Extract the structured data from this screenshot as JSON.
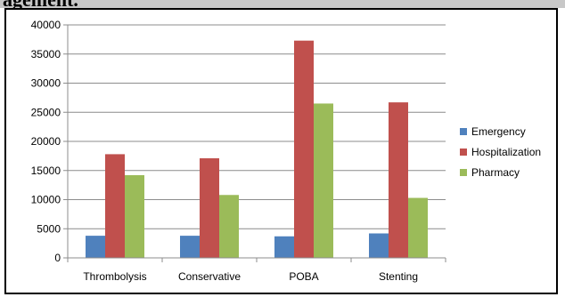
{
  "header": {
    "cutoff_text": "agement."
  },
  "chart_data": {
    "type": "bar",
    "title": "",
    "xlabel": "",
    "ylabel": "",
    "categories": [
      "Thrombolysis",
      "Conservative",
      "POBA",
      "Stenting"
    ],
    "series": [
      {
        "name": "Emergency",
        "values": [
          3800,
          3800,
          3700,
          4200
        ],
        "color": "#4f81bd"
      },
      {
        "name": "Hospitalization",
        "values": [
          17800,
          17100,
          37300,
          26700
        ],
        "color": "#c0504d"
      },
      {
        "name": "Pharmacy",
        "values": [
          14200,
          10800,
          26500,
          10300
        ],
        "color": "#9bbb59"
      }
    ],
    "yticks": [
      "0",
      "5000",
      "10000",
      "15000",
      "20000",
      "25000",
      "30000",
      "35000",
      "40000"
    ],
    "ylim": [
      0,
      40000
    ],
    "grid": true,
    "legend_position": "right"
  }
}
